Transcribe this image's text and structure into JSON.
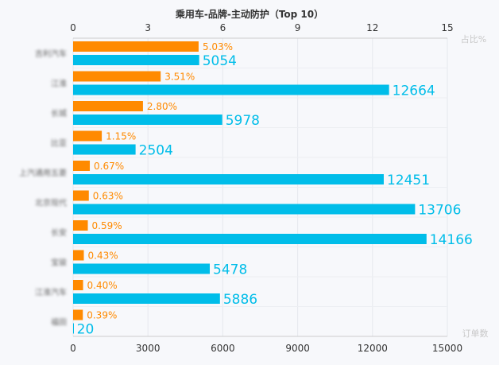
{
  "chart_data": {
    "type": "bar",
    "title": "乘用车-品牌-主动防护（Top 10）",
    "top_axis": {
      "label": "占比%",
      "ticks": [
        0,
        3,
        6,
        9,
        12,
        15
      ],
      "range": [
        0,
        15
      ]
    },
    "bottom_axis": {
      "label": "订单数",
      "ticks": [
        0,
        3000,
        6000,
        9000,
        12000,
        15000
      ],
      "range": [
        0,
        15000
      ]
    },
    "categories": [
      "吉利汽车",
      "江淮",
      "长城",
      "比亚",
      "上汽通用五菱",
      "北京现代",
      "长安",
      "宝骏",
      "江淮汽车",
      "福田"
    ],
    "series": [
      {
        "color": "#ff8a00",
        "axis": "top",
        "values": [
          5.03,
          3.51,
          2.8,
          1.15,
          0.67,
          0.63,
          0.59,
          0.43,
          0.4,
          0.39
        ],
        "labels": [
          "5.03%",
          "3.51%",
          "2.80%",
          "1.15%",
          "0.67%",
          "0.63%",
          "0.59%",
          "0.43%",
          "0.40%",
          "0.39%"
        ]
      },
      {
        "color": "#00bde9",
        "axis": "bottom",
        "values": [
          5054,
          12664,
          5978,
          2504,
          12451,
          13706,
          14166,
          5478,
          5886,
          20
        ],
        "labels": [
          "5054",
          "12664",
          "5978",
          "2504",
          "12451",
          "13706",
          "14166",
          "5478",
          "5886",
          "20"
        ]
      }
    ],
    "grid": true,
    "background": "#f7f8fb"
  }
}
